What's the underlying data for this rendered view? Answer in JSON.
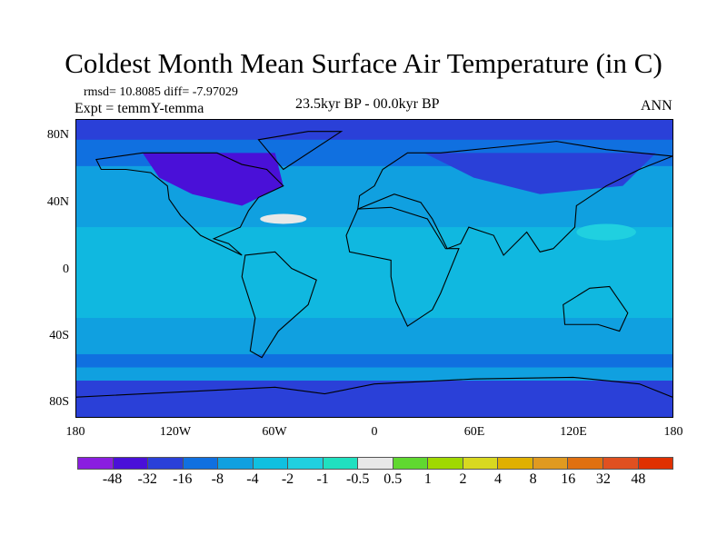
{
  "title": "Coldest Month Mean Surface Air Temperature (in C)",
  "stats": "rmsd= 10.8085 diff= -7.97029",
  "experiment": "Expt = temmY-temma",
  "period": "23.5kyr BP - 00.0kyr BP",
  "season": "ANN",
  "lat_labels": [
    "80N",
    "40N",
    "0",
    "40S",
    "80S"
  ],
  "lon_labels": [
    "180",
    "120W",
    "60W",
    "0",
    "60E",
    "120E",
    "180"
  ],
  "colorbar": {
    "colors": [
      "#8a1ee0",
      "#4a10d8",
      "#2a40d8",
      "#1070e0",
      "#10a0e0",
      "#10c0e0",
      "#20d0e0",
      "#20e0c0",
      "#e8e8e8",
      "#60d830",
      "#a0d800",
      "#d8d820",
      "#e0b000",
      "#e09a20",
      "#e07010",
      "#e05020",
      "#e03000"
    ],
    "labels": [
      "-48",
      "-32",
      "-16",
      "-8",
      "-4",
      "-2",
      "-1",
      "-0.5",
      "0.5",
      "1",
      "2",
      "4",
      "8",
      "16",
      "32",
      "48"
    ]
  }
}
